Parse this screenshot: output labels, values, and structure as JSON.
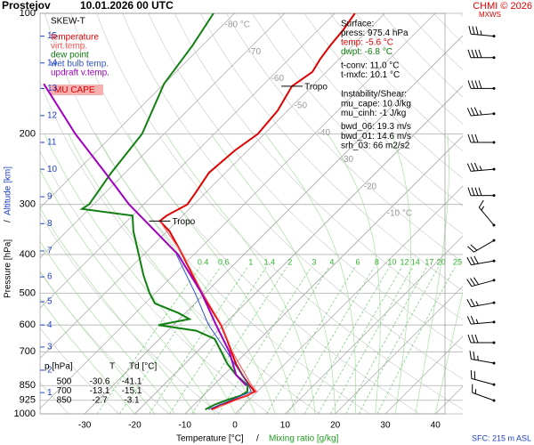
{
  "chart_data": {
    "type": "skewt",
    "title": "Prostejov",
    "subtitle": "10.01.2026 00 UTC",
    "credit": "CHMI © 2026",
    "max_wind_label": "MXWS",
    "legend_title": "SKEW-T",
    "cape_label": "MU CAPE",
    "x_label": "Temperature [°C]",
    "axis_separator": "/",
    "mixing_label": "Mixing ratio [g/kg]",
    "y_label": "Pressure [hPa]",
    "y2_label": "Altitude [km]",
    "station_note": "SFC: 215 m ASL",
    "xlim": [
      -38.9,
      41.9
    ],
    "ylim": [
      100,
      1000
    ],
    "log_y": true,
    "xticks": [
      -30,
      -20,
      -10,
      0,
      10,
      20,
      30,
      40
    ],
    "yticks": [
      100,
      200,
      300,
      400,
      500,
      600,
      700,
      850,
      925,
      1000
    ],
    "altitude_ticks": [
      {
        "value": 114,
        "label": "15"
      },
      {
        "value": 133,
        "label": "14"
      },
      {
        "value": 154,
        "label": "13"
      },
      {
        "value": 180,
        "label": "12"
      },
      {
        "value": 210,
        "label": "11"
      },
      {
        "value": 245,
        "label": "10"
      },
      {
        "value": 287,
        "label": "9"
      },
      {
        "value": 335,
        "label": "8"
      },
      {
        "value": 392,
        "label": "7"
      },
      {
        "value": 455,
        "label": "6"
      },
      {
        "value": 525,
        "label": "5"
      },
      {
        "value": 600,
        "label": "4"
      },
      {
        "value": 681,
        "label": "3"
      },
      {
        "value": 778,
        "label": "2"
      },
      {
        "value": 885,
        "label": "1"
      }
    ],
    "isotherm_labels": [
      {
        "value": -80,
        "label": "-80 °C"
      },
      {
        "value": -70,
        "label": "-70"
      },
      {
        "value": -60,
        "label": "-60"
      },
      {
        "value": -50,
        "label": "-50"
      },
      {
        "value": -40,
        "label": "-40"
      },
      {
        "value": -30,
        "label": "-30"
      },
      {
        "value": -20,
        "label": "-20"
      },
      {
        "value": -10,
        "label": "-10 °C"
      }
    ],
    "mixing_ratios": [
      0.4,
      0.6,
      1,
      1.4,
      2,
      3,
      4,
      6,
      8,
      10,
      12,
      14,
      17,
      20,
      25
    ],
    "tropo_label": "Tropo",
    "tropopause": [
      152,
      330
    ],
    "series": [
      {
        "name": "temperature",
        "color": "#e00000",
        "pressure": [
          975.4,
          950,
          925,
          900,
          880,
          850,
          800,
          750,
          700,
          650,
          600,
          550,
          500,
          450,
          400,
          350,
          330,
          320,
          300,
          280,
          250,
          220,
          200,
          175,
          152,
          140,
          130,
          120,
          110,
          100
        ],
        "values": [
          -5.6,
          -4.8,
          -3,
          -1.2,
          -0.5,
          -2.7,
          -6.3,
          -9.8,
          -13.1,
          -16.6,
          -20.5,
          -25.4,
          -30.6,
          -36.2,
          -42.3,
          -49.5,
          -53.5,
          -53.2,
          -51.3,
          -52,
          -53.3,
          -52.6,
          -51.3,
          -52,
          -54,
          -52.8,
          -53.8,
          -54.5,
          -55,
          -56
        ]
      },
      {
        "name": "virt.temp.",
        "color": "#ff5050",
        "pressure": [
          975.4,
          925,
          880,
          850,
          700,
          600,
          500,
          400,
          330
        ],
        "values": [
          -5.2,
          -2.6,
          -0.1,
          -2.3,
          -12.9,
          -20.4,
          -30.5,
          -42.2,
          -53.5
        ]
      },
      {
        "name": "dew point",
        "color": "#108010",
        "pressure": [
          975.4,
          950,
          925,
          900,
          880,
          850,
          800,
          750,
          700,
          650,
          620,
          600,
          580,
          560,
          530,
          500,
          450,
          400,
          350,
          320,
          308,
          300,
          280,
          250,
          200,
          150,
          120,
          100
        ],
        "values": [
          -6.8,
          -6,
          -4.5,
          -2.5,
          -2,
          -3.1,
          -7.5,
          -11.5,
          -15.1,
          -19,
          -24.3,
          -33,
          -28,
          -31.4,
          -38,
          -41.1,
          -46,
          -51,
          -56.7,
          -60,
          -71.4,
          -70.9,
          -71.6,
          -72.8,
          -74.4,
          -80,
          -82,
          -84.2
        ]
      },
      {
        "name": "wet bulb temp.",
        "color": "#3355cc",
        "pressure": [
          975.4,
          925,
          880,
          850,
          700,
          600,
          500,
          400
        ],
        "values": [
          -6.2,
          -3.6,
          -1.2,
          -2.9,
          -14,
          -23,
          -32,
          -43.5
        ]
      },
      {
        "name": "updraft v.temp.",
        "color": "#a000c0",
        "pressure": [
          850,
          800,
          700,
          600,
          500,
          400,
          300,
          250,
          200,
          150
        ],
        "values": [
          -3.4,
          -7.5,
          -13.5,
          -21.5,
          -30.7,
          -43.2,
          -62.9,
          -74,
          -87.7,
          -104
        ]
      }
    ],
    "wind": {
      "pressure": [
        114,
        129,
        154,
        178,
        210,
        245,
        285,
        338,
        369,
        415,
        464,
        528,
        590,
        664,
        747,
        845,
        926
      ],
      "direction": [
        275,
        270,
        270,
        265,
        270,
        265,
        270,
        320,
        240,
        260,
        255,
        260,
        265,
        270,
        280,
        285,
        290
      ],
      "speed": [
        35,
        40,
        40,
        35,
        30,
        35,
        40,
        15,
        20,
        30,
        30,
        25,
        25,
        30,
        25,
        20,
        15
      ]
    },
    "surface_info": [
      "Surface:",
      "press: 975.4 hPa",
      "temp: -5.6 °C",
      "dwpt: -6.8 °C",
      "t-conv: 11.0 °C",
      "t-mxfc: 10.1 °C"
    ],
    "instability_info": [
      "Instability/Shear:",
      "mu_cape: 10 J/kg",
      "mu_cinh: -1 J/kg",
      "bwd_06: 19.3 m/s",
      "bwd_01: 14.6 m/s",
      "srh_03: 66 m2/s2"
    ],
    "table": {
      "header": [
        "p [hPa]",
        "T",
        "Td [°C]"
      ],
      "rows": [
        [
          500,
          -30.6,
          -41.1
        ],
        [
          700,
          -13.1,
          -15.1
        ],
        [
          850,
          -2.7,
          -3.1
        ]
      ]
    }
  }
}
